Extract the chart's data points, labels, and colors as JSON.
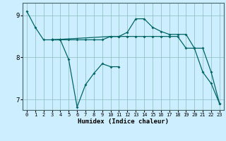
{
  "xlabel": "Humidex (Indice chaleur)",
  "bg_color": "#cceeff",
  "line_color": "#006666",
  "xlim": [
    -0.5,
    23.5
  ],
  "ylim": [
    6.75,
    9.3
  ],
  "yticks": [
    7,
    8,
    9
  ],
  "xticks": [
    0,
    1,
    2,
    3,
    4,
    5,
    6,
    7,
    8,
    9,
    10,
    11,
    12,
    13,
    14,
    15,
    16,
    17,
    18,
    19,
    20,
    21,
    22,
    23
  ],
  "lines": [
    {
      "x": [
        0,
        1,
        2,
        3,
        4
      ],
      "y": [
        9.1,
        8.72,
        8.42,
        8.42,
        8.42
      ]
    },
    {
      "x": [
        3,
        4,
        5,
        6,
        7,
        8,
        9,
        10,
        11
      ],
      "y": [
        8.42,
        8.42,
        7.95,
        6.82,
        7.35,
        7.62,
        7.85,
        7.78,
        7.78
      ]
    },
    {
      "x": [
        3,
        4,
        5,
        6,
        7,
        8,
        9,
        10,
        11,
        12,
        13,
        14,
        15,
        16,
        17,
        18,
        19,
        20,
        21,
        22,
        23
      ],
      "y": [
        8.42,
        8.42,
        8.42,
        8.42,
        8.42,
        8.42,
        8.42,
        8.5,
        8.5,
        8.5,
        8.5,
        8.5,
        8.5,
        8.5,
        8.5,
        8.5,
        8.22,
        8.22,
        7.65,
        7.38,
        6.9
      ]
    },
    {
      "x": [
        3,
        10,
        11,
        12,
        13,
        14,
        15,
        16,
        17,
        18,
        19,
        20,
        21,
        22,
        23
      ],
      "y": [
        8.42,
        8.5,
        8.5,
        8.6,
        8.92,
        8.92,
        8.72,
        8.62,
        8.55,
        8.55,
        8.55,
        8.22,
        8.22,
        7.65,
        6.9
      ]
    }
  ]
}
